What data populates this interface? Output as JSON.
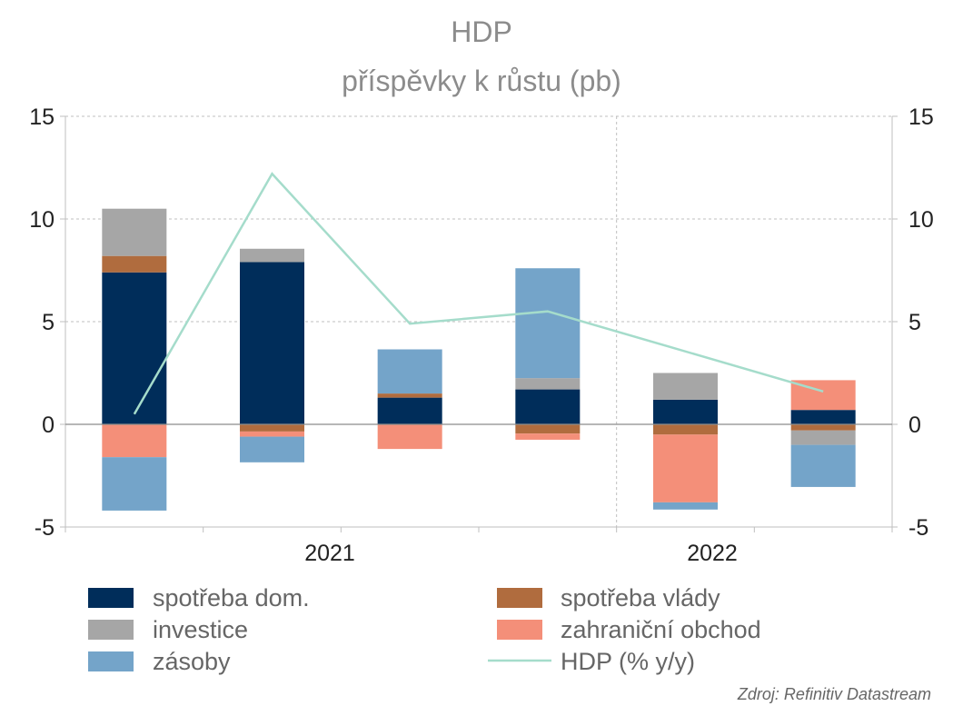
{
  "chart_data": {
    "type": "bar",
    "title": "HDP",
    "subtitle": "příspěvky k růstu  (pb)",
    "source": "Zdroj: Refinitiv Datastream",
    "ylim": [
      -5,
      15
    ],
    "yticks_left": [
      "15",
      "10",
      "5",
      "0",
      "-5"
    ],
    "yticks_right": [
      "15",
      "10",
      "5",
      "0",
      "-5"
    ],
    "ytick_values": [
      15,
      10,
      5,
      0,
      -5
    ],
    "x_labels": [
      "2021",
      "2022"
    ],
    "grid": true,
    "stacked": true,
    "series": [
      {
        "name": "spotřeba dom.",
        "color": "#002d5a",
        "values": [
          7.4,
          7.9,
          1.3,
          1.7,
          1.2,
          0.7
        ]
      },
      {
        "name": "spotřeba vlády",
        "color": "#b06c3e",
        "values": [
          0.8,
          -0.35,
          0.2,
          -0.45,
          -0.5,
          -0.3
        ]
      },
      {
        "name": "investice",
        "color": "#a6a6a6",
        "values": [
          2.3,
          0.65,
          0.0,
          0.55,
          1.3,
          -0.7
        ]
      },
      {
        "name": "zahraniční obchod",
        "color": "#f48f79",
        "values": [
          -1.6,
          -0.25,
          -1.2,
          -0.3,
          -3.3,
          1.45
        ]
      },
      {
        "name": "zásoby",
        "color": "#74a4c9",
        "values": [
          -2.6,
          -1.25,
          2.15,
          5.35,
          -0.35,
          -2.05
        ]
      }
    ],
    "line_series": {
      "name": "HDP (% y/y)",
      "color": "#a5dccb",
      "values": [
        0.5,
        12.2,
        4.9,
        5.5,
        null,
        1.6
      ]
    },
    "legend": {
      "placement": "bottom",
      "items": [
        {
          "label": "spotřeba dom.",
          "color": "#002d5a",
          "kind": "box"
        },
        {
          "label": "spotřeba vlády",
          "color": "#b06c3e",
          "kind": "box"
        },
        {
          "label": "investice",
          "color": "#a6a6a6",
          "kind": "box"
        },
        {
          "label": "zahraniční obchod",
          "color": "#f48f79",
          "kind": "box"
        },
        {
          "label": "zásoby",
          "color": "#74a4c9",
          "kind": "box"
        },
        {
          "label": "HDP (% y/y)",
          "color": "#a5dccb",
          "kind": "line"
        }
      ]
    }
  }
}
